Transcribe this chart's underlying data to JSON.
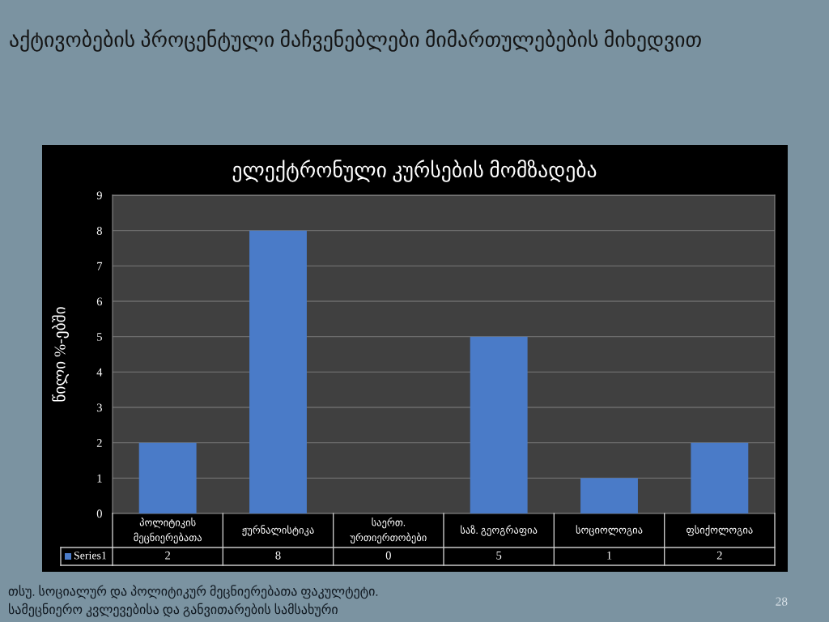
{
  "chart_data": {
    "type": "bar",
    "title": "აქტივობების პროცენტული მაჩვენებლები მიმართულებების მიხედვით",
    "subtitle": "ელექტრონული კურსების მომზადება",
    "ylabel": "წილი %-ებში",
    "categories": [
      "პოლიტიკის\nმეცნიერებათა",
      "ჟურნალისტიკა",
      "საერთ.\nურთიერთობები",
      "საზ. გეოგრაფია",
      "სოციოლოგია",
      "ფსიქოლოგია"
    ],
    "series": [
      {
        "name": "Series1",
        "color": "#4a7bc8",
        "values": [
          2,
          8,
          0,
          5,
          1,
          2
        ]
      }
    ],
    "ylim": [
      0,
      9
    ],
    "yticks": [
      0,
      1,
      2,
      3,
      4,
      5,
      6,
      7,
      8,
      9
    ],
    "grid": "y",
    "legend": "bottom left",
    "data_labels": true,
    "annotations": [
      "თსუ. სოციალურ და პოლიტიკურ მეცნიერებათა ფაკულტეტი.\nსამეცნიერო კვლევებისა და განვითარების სამსახური",
      "28"
    ]
  }
}
